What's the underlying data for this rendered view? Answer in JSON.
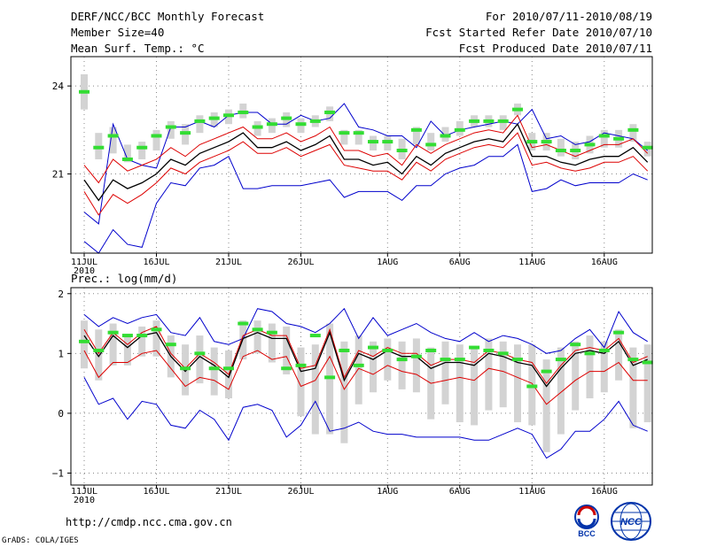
{
  "header": {
    "title": "DERF/NCC/BCC Monthly Forecast",
    "member_size": "Member Size=40",
    "variable": "Mean Surf. Temp.: °C",
    "for_period": "For 2010/07/11-2010/08/19",
    "fcst_started": "Fcst Started Refer Date 2010/07/10",
    "fcst_produced": "Fcst Produced Date 2010/07/11"
  },
  "footer": {
    "url": "http://cmdp.ncc.cma.gov.cn",
    "grads": "GrADS: COLA/IGES",
    "logo1_text": "BCC",
    "logo2_text": "NCC"
  },
  "colors": {
    "envelope": "#0000cc",
    "band": "#dd0000",
    "mean": "#000000",
    "box": "#d3d3d3",
    "obs": "#33dd33",
    "grid": "#888888"
  },
  "chart_data": [
    {
      "type": "line",
      "title": "Mean Surf. Temp.: °C",
      "x_tick_labels": [
        "11JUL",
        "16JUL",
        "21JUL",
        "26JUL",
        "1AUG",
        "6AUG",
        "11AUG",
        "16AUG"
      ],
      "x_year_label": "2010",
      "x_start_day": 0,
      "x_end_day": 39,
      "y_tick_labels": [
        "21",
        "24"
      ],
      "ylim": [
        18.3,
        25.0
      ],
      "series": [
        {
          "name": "max",
          "values": [
            19.7,
            19.3,
            22.7,
            21.5,
            21.3,
            21.2,
            22.6,
            22.6,
            22.8,
            22.6,
            23.0,
            23.1,
            23.1,
            22.7,
            22.7,
            23.0,
            22.8,
            22.9,
            23.4,
            22.6,
            22.5,
            22.3,
            22.3,
            21.9,
            22.8,
            22.3,
            22.5,
            22.6,
            22.7,
            22.8,
            22.7,
            23.2,
            22.2,
            22.3,
            22.0,
            22.1,
            22.4,
            22.3,
            22.2,
            21.8
          ]
        },
        {
          "name": "upper",
          "values": [
            21.3,
            20.7,
            21.5,
            21.1,
            21.3,
            21.5,
            21.9,
            21.6,
            22.0,
            22.2,
            22.4,
            22.6,
            22.2,
            22.2,
            22.4,
            22.1,
            22.3,
            22.6,
            21.8,
            21.8,
            21.6,
            21.7,
            21.3,
            22.0,
            21.7,
            22.0,
            22.2,
            22.4,
            22.5,
            22.4,
            23.0,
            21.9,
            22.0,
            21.8,
            21.6,
            21.8,
            22.0,
            22.0,
            22.2,
            21.7
          ]
        },
        {
          "name": "mean",
          "values": [
            20.8,
            20.1,
            20.8,
            20.5,
            20.7,
            21.0,
            21.5,
            21.3,
            21.7,
            21.9,
            22.1,
            22.4,
            21.9,
            21.9,
            22.1,
            21.8,
            22.0,
            22.3,
            21.5,
            21.5,
            21.3,
            21.4,
            21.0,
            21.6,
            21.3,
            21.7,
            21.9,
            22.1,
            22.2,
            22.1,
            22.7,
            21.6,
            21.6,
            21.4,
            21.3,
            21.5,
            21.6,
            21.6,
            21.9,
            21.4
          ]
        },
        {
          "name": "lower",
          "values": [
            20.4,
            19.6,
            20.3,
            20.0,
            20.3,
            20.7,
            21.2,
            21.0,
            21.4,
            21.6,
            21.8,
            22.1,
            21.7,
            21.7,
            21.9,
            21.6,
            21.8,
            22.0,
            21.3,
            21.2,
            21.1,
            21.1,
            20.8,
            21.4,
            21.1,
            21.5,
            21.7,
            21.9,
            22.0,
            21.9,
            22.4,
            21.3,
            21.4,
            21.2,
            21.1,
            21.2,
            21.4,
            21.4,
            21.6,
            21.1
          ]
        },
        {
          "name": "min",
          "values": [
            18.7,
            18.3,
            19.1,
            18.6,
            18.5,
            20.0,
            20.7,
            20.6,
            21.2,
            21.3,
            21.6,
            20.5,
            20.5,
            20.6,
            20.6,
            20.6,
            20.7,
            20.8,
            20.2,
            20.4,
            20.4,
            20.4,
            20.1,
            20.6,
            20.6,
            21.0,
            21.2,
            21.3,
            21.6,
            21.6,
            22.0,
            20.4,
            20.5,
            20.8,
            20.6,
            20.7,
            20.7,
            20.7,
            21.0,
            20.8
          ]
        },
        {
          "name": "box_top",
          "values": [
            24.4,
            22.4,
            22.6,
            22.0,
            22.1,
            22.5,
            22.8,
            22.7,
            23.0,
            23.1,
            23.2,
            23.4,
            22.8,
            22.9,
            23.1,
            22.9,
            23.0,
            23.3,
            22.5,
            22.5,
            22.3,
            22.3,
            22.2,
            22.6,
            22.4,
            22.6,
            22.8,
            23.0,
            23.0,
            23.0,
            23.4,
            22.4,
            22.4,
            22.2,
            22.1,
            22.3,
            22.5,
            22.5,
            22.7,
            22.1
          ]
        },
        {
          "name": "box_bottom",
          "values": [
            23.2,
            21.5,
            21.7,
            21.4,
            21.5,
            21.8,
            22.2,
            22.0,
            22.4,
            22.6,
            22.7,
            22.9,
            22.3,
            22.4,
            22.6,
            22.4,
            22.6,
            22.8,
            22.0,
            22.0,
            21.8,
            21.8,
            21.5,
            22.0,
            21.8,
            22.1,
            22.3,
            22.6,
            22.6,
            22.5,
            23.0,
            21.8,
            21.8,
            21.6,
            21.5,
            21.7,
            21.9,
            21.9,
            22.1,
            21.6
          ]
        },
        {
          "name": "observed",
          "values": [
            23.8,
            21.9,
            22.3,
            21.5,
            21.9,
            22.3,
            22.6,
            22.4,
            22.8,
            22.9,
            23.0,
            23.1,
            22.6,
            22.7,
            22.9,
            22.7,
            22.8,
            23.1,
            22.4,
            22.4,
            22.1,
            22.1,
            21.8,
            22.5,
            22.0,
            22.3,
            22.5,
            22.8,
            22.8,
            22.8,
            23.2,
            22.1,
            22.1,
            21.8,
            21.8,
            22.0,
            22.3,
            22.2,
            22.5,
            21.9
          ]
        }
      ]
    },
    {
      "type": "line",
      "title": "Prec.: log(mm/d)",
      "x_tick_labels": [
        "11JUL",
        "16JUL",
        "21JUL",
        "26JUL",
        "1AUG",
        "6AUG",
        "11AUG",
        "16AUG"
      ],
      "x_year_label": "2010",
      "x_start_day": 0,
      "x_end_day": 39,
      "y_tick_labels": [
        "−1",
        "0",
        "1",
        "2"
      ],
      "ylim": [
        -1.2,
        2.1
      ],
      "series": [
        {
          "name": "max",
          "values": [
            1.65,
            1.45,
            1.6,
            1.5,
            1.6,
            1.65,
            1.35,
            1.3,
            1.6,
            1.2,
            1.15,
            1.25,
            1.75,
            1.7,
            1.5,
            1.45,
            1.35,
            1.5,
            1.75,
            1.25,
            1.6,
            1.3,
            1.4,
            1.5,
            1.35,
            1.25,
            1.2,
            1.35,
            1.2,
            1.3,
            1.25,
            1.15,
            1.0,
            1.05,
            1.25,
            1.4,
            1.1,
            1.7,
            1.35,
            1.2
          ]
        },
        {
          "name": "upper",
          "values": [
            1.4,
            1.0,
            1.35,
            1.15,
            1.35,
            1.45,
            1.0,
            0.75,
            1.0,
            0.85,
            0.65,
            1.3,
            1.4,
            1.3,
            1.3,
            0.75,
            0.8,
            1.4,
            0.6,
            1.05,
            0.95,
            1.1,
            1.0,
            1.0,
            0.8,
            0.9,
            0.9,
            0.85,
            1.05,
            1.0,
            0.9,
            0.85,
            0.5,
            0.8,
            1.05,
            1.1,
            1.05,
            1.25,
            0.85,
            0.95
          ]
        },
        {
          "name": "mean",
          "values": [
            1.3,
            0.95,
            1.3,
            1.1,
            1.3,
            1.35,
            0.95,
            0.7,
            0.95,
            0.8,
            0.6,
            1.25,
            1.35,
            1.25,
            1.25,
            0.7,
            0.75,
            1.35,
            0.55,
            1.0,
            0.9,
            1.05,
            0.95,
            0.95,
            0.75,
            0.85,
            0.85,
            0.8,
            1.0,
            0.95,
            0.85,
            0.8,
            0.45,
            0.75,
            1.0,
            1.05,
            1.0,
            1.2,
            0.8,
            0.9
          ]
        },
        {
          "name": "lower",
          "values": [
            1.05,
            0.6,
            0.85,
            0.85,
            1.0,
            1.05,
            0.75,
            0.45,
            0.6,
            0.55,
            0.4,
            0.95,
            1.05,
            0.9,
            0.95,
            0.45,
            0.55,
            0.95,
            0.4,
            0.75,
            0.65,
            0.8,
            0.7,
            0.65,
            0.5,
            0.55,
            0.6,
            0.55,
            0.75,
            0.7,
            0.6,
            0.5,
            0.15,
            0.35,
            0.55,
            0.7,
            0.7,
            0.85,
            0.55,
            0.55
          ]
        },
        {
          "name": "min",
          "values": [
            0.6,
            0.15,
            0.25,
            -0.1,
            0.2,
            0.15,
            -0.2,
            -0.25,
            0.05,
            -0.1,
            -0.45,
            0.1,
            0.15,
            0.05,
            -0.4,
            -0.2,
            0.2,
            -0.3,
            -0.25,
            -0.15,
            -0.3,
            -0.35,
            -0.35,
            -0.4,
            -0.4,
            -0.4,
            -0.4,
            -0.45,
            -0.45,
            -0.35,
            -0.25,
            -0.35,
            -0.75,
            -0.6,
            -0.3,
            -0.3,
            -0.1,
            0.2,
            -0.2,
            -0.3
          ]
        },
        {
          "name": "box_top",
          "values": [
            1.55,
            1.4,
            1.5,
            1.3,
            1.45,
            1.55,
            1.3,
            1.15,
            1.3,
            1.1,
            1.05,
            1.55,
            1.55,
            1.5,
            1.45,
            1.1,
            1.15,
            1.5,
            1.2,
            1.3,
            1.2,
            1.25,
            1.2,
            1.25,
            1.1,
            1.2,
            1.15,
            1.1,
            1.25,
            1.2,
            1.15,
            1.15,
            0.9,
            1.1,
            1.2,
            1.3,
            1.2,
            1.4,
            1.1,
            1.15
          ]
        },
        {
          "name": "box_bottom",
          "values": [
            0.75,
            0.55,
            0.8,
            0.8,
            0.95,
            0.95,
            0.6,
            0.3,
            0.5,
            0.3,
            0.25,
            0.9,
            1.0,
            0.85,
            0.65,
            -0.05,
            -0.35,
            -0.35,
            -0.5,
            0.15,
            0.35,
            0.55,
            0.4,
            0.35,
            -0.1,
            0.15,
            -0.15,
            -0.2,
            0.05,
            0.1,
            -0.15,
            -0.2,
            -0.65,
            -0.35,
            0.05,
            0.25,
            0.35,
            0.55,
            -0.25,
            -0.15
          ]
        },
        {
          "name": "observed",
          "values": [
            1.2,
            1.05,
            1.35,
            1.3,
            1.3,
            1.4,
            1.15,
            0.75,
            1.0,
            0.75,
            0.75,
            1.5,
            1.4,
            1.35,
            0.75,
            0.8,
            1.3,
            0.6,
            1.05,
            0.8,
            1.1,
            1.05,
            0.9,
            0.95,
            1.05,
            0.9,
            0.9,
            1.1,
            1.05,
            1.0,
            0.9,
            0.45,
            0.7,
            0.9,
            1.15,
            1.0,
            1.05,
            1.35,
            0.9,
            0.85
          ]
        }
      ]
    }
  ]
}
